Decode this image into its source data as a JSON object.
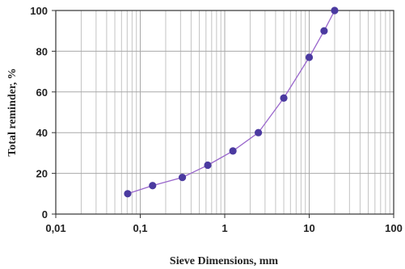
{
  "chart_data": {
    "type": "line",
    "title": "",
    "xlabel": "Sieve Dimensions, mm",
    "ylabel": "Total reminder, %",
    "x_scale": "log",
    "xlim": [
      0.01,
      100
    ],
    "ylim": [
      0,
      100
    ],
    "x_ticks": [
      "0,01",
      "0,1",
      "1",
      "10",
      "100"
    ],
    "y_ticks": [
      "0",
      "20",
      "40",
      "60",
      "80",
      "100"
    ],
    "grid": true,
    "legend": "none",
    "colors": {
      "line": "#9966cc",
      "marker": "#4b3aa0"
    },
    "series": [
      {
        "x": [
          0.071,
          0.14,
          0.315,
          0.63,
          1.25,
          2.5,
          5,
          10,
          15,
          20
        ],
        "values": [
          10,
          14,
          18,
          24,
          31,
          40,
          57,
          77,
          90,
          100
        ]
      }
    ]
  }
}
